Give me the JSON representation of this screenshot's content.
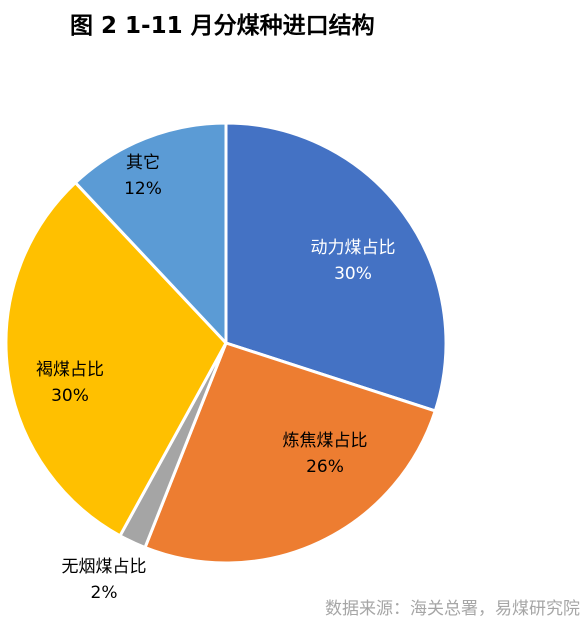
{
  "title": "图 2 1-11 月分煤种进口结构",
  "source": "数据来源：海关总署，易煤研究院",
  "chart_data": {
    "type": "pie",
    "start_angle_deg": 0,
    "direction": "clockwise",
    "slices": [
      {
        "name": "动力煤占比",
        "value": 30,
        "label": "30%",
        "color": "#4472C4"
      },
      {
        "name": "炼焦煤占比",
        "value": 26,
        "label": "26%",
        "color": "#ED7D31"
      },
      {
        "name": "无烟煤占比",
        "value": 2,
        "label": "2%",
        "color": "#A5A5A5"
      },
      {
        "name": "褐煤占比",
        "value": 30,
        "label": "30%",
        "color": "#FFC000"
      },
      {
        "name": "其它",
        "value": 12,
        "label": "12%",
        "color": "#5B9BD5"
      }
    ]
  }
}
